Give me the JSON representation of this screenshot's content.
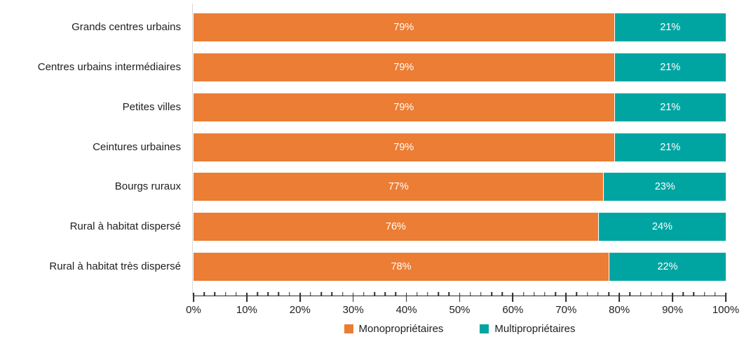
{
  "chart_data": {
    "type": "bar",
    "orientation": "horizontal",
    "stacked": true,
    "title": "",
    "unit": "%",
    "categories": [
      "Grands centres urbains",
      "Centres urbains intermédiaires",
      "Petites villes",
      "Ceintures urbaines",
      "Bourgs ruraux",
      "Rural à habitat dispersé",
      "Rural à habitat très dispersé"
    ],
    "series": [
      {
        "name": "Monopropriétaires",
        "color": "#EB7D34",
        "values": [
          79,
          79,
          79,
          79,
          77,
          76,
          78
        ],
        "data_labels": [
          "79%",
          "79%",
          "79%",
          "79%",
          "77%",
          "76%",
          "78%"
        ]
      },
      {
        "name": "Multipropriétaires",
        "color": "#00A5A2",
        "values": [
          21,
          21,
          21,
          21,
          23,
          24,
          22
        ],
        "data_labels": [
          "21%",
          "21%",
          "21%",
          "21%",
          "23%",
          "24%",
          "22%"
        ]
      }
    ],
    "x_axis": {
      "min": 0,
      "max": 100,
      "major_tick_step": 10,
      "minor_tick_step": 2,
      "tick_labels": [
        "0%",
        "10%",
        "20%",
        "30%",
        "40%",
        "50%",
        "60%",
        "70%",
        "80%",
        "90%",
        "100%"
      ]
    },
    "legend": {
      "position": "bottom",
      "items": [
        {
          "label": "Monopropriétaires",
          "color": "#EB7D34"
        },
        {
          "label": "Multipropriétaires",
          "color": "#00A5A2"
        }
      ]
    },
    "layout": {
      "grid": "off",
      "data_label_color": "#FFFFFF",
      "axis_line_color": "#2B2B2B",
      "left_baseline_color": "#D9D9D9",
      "background": "#FFFFFF"
    }
  }
}
